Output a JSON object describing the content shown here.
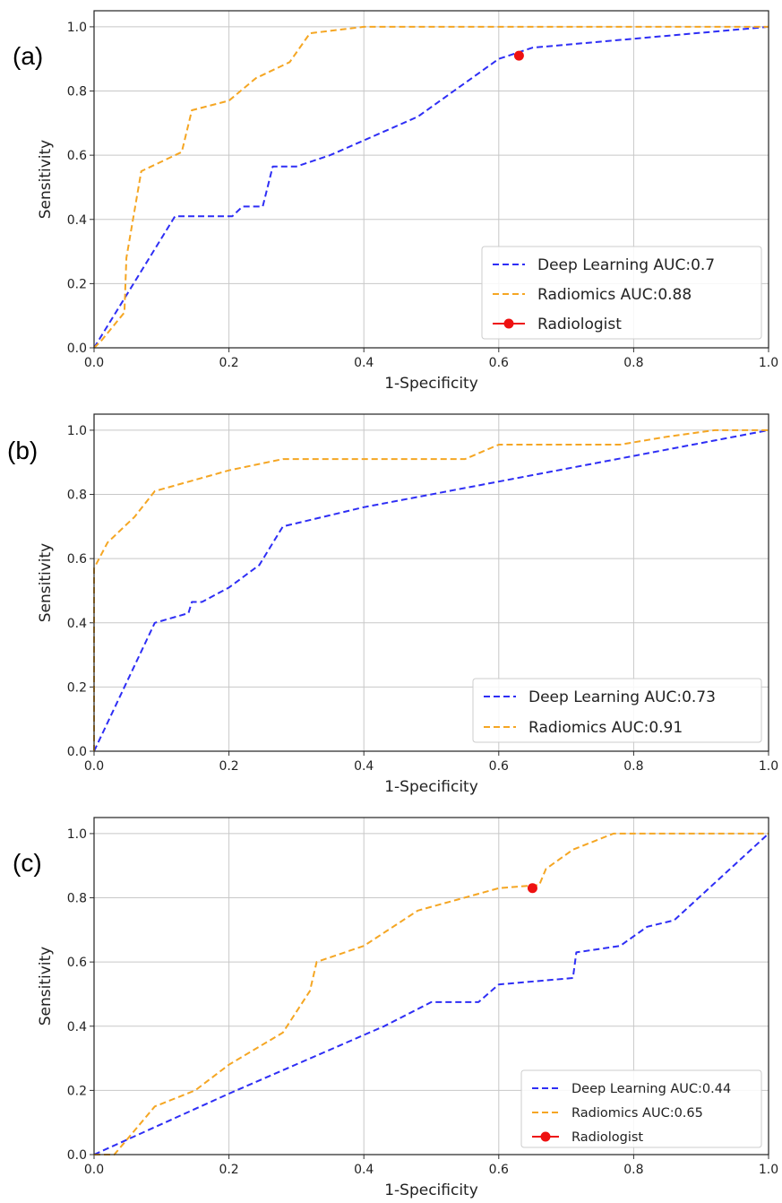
{
  "chart_data": [
    {
      "type": "line",
      "panel_label": "(a)",
      "xlabel": "1-Specificity",
      "ylabel": "Sensitivity",
      "xlim": [
        0,
        1
      ],
      "ylim": [
        0,
        1.05
      ],
      "xticks": [
        0.0,
        0.2,
        0.4,
        0.6,
        0.8,
        1.0
      ],
      "yticks": [
        0.0,
        0.2,
        0.4,
        0.6,
        0.8,
        1.0
      ],
      "xtick_labels": [
        "0.0",
        "0.2",
        "0.4",
        "0.6",
        "0.8",
        "1.0"
      ],
      "ytick_labels": [
        "0.0",
        "0.2",
        "0.4",
        "0.6",
        "0.8",
        "1.0"
      ],
      "grid": true,
      "legend": "lower-right",
      "series": [
        {
          "name": "Deep Learning AUC:0.7",
          "color": "#2e2ef5",
          "style": "dashed",
          "x": [
            0,
            0.12,
            0.205,
            0.22,
            0.25,
            0.265,
            0.3,
            0.35,
            0.48,
            0.6,
            0.65,
            1.0
          ],
          "y": [
            0,
            0.41,
            0.41,
            0.44,
            0.44,
            0.565,
            0.565,
            0.6,
            0.72,
            0.9,
            0.935,
            1.0
          ]
        },
        {
          "name": "Radiomics AUC:0.88",
          "color": "#f5a623",
          "style": "dashed",
          "x": [
            0,
            0.01,
            0.045,
            0.048,
            0.07,
            0.13,
            0.145,
            0.2,
            0.24,
            0.29,
            0.32,
            0.4,
            1.0
          ],
          "y": [
            0,
            0.02,
            0.11,
            0.28,
            0.55,
            0.61,
            0.74,
            0.77,
            0.84,
            0.89,
            0.98,
            1.0,
            1.0
          ]
        },
        {
          "name": "Radiologist",
          "color": "#ee1111",
          "style": "point",
          "x": [
            0.63
          ],
          "y": [
            0.91
          ]
        }
      ]
    },
    {
      "type": "line",
      "panel_label": "(b)",
      "xlabel": "1-Specificity",
      "ylabel": "Sensitivity",
      "xlim": [
        0,
        1
      ],
      "ylim": [
        0,
        1.05
      ],
      "xticks": [
        0.0,
        0.2,
        0.4,
        0.6,
        0.8,
        1.0
      ],
      "yticks": [
        0.0,
        0.2,
        0.4,
        0.6,
        0.8,
        1.0
      ],
      "xtick_labels": [
        "0.0",
        "0.2",
        "0.4",
        "0.6",
        "0.8",
        "1.0"
      ],
      "ytick_labels": [
        "0.0",
        "0.2",
        "0.4",
        "0.6",
        "0.8",
        "1.0"
      ],
      "grid": true,
      "legend": "lower-right",
      "series": [
        {
          "name": "Deep Learning AUC:0.73",
          "color": "#2e2ef5",
          "style": "dashed",
          "x": [
            0,
            0.09,
            0.14,
            0.145,
            0.16,
            0.2,
            0.245,
            0.28,
            0.4,
            0.6,
            0.8,
            1.0
          ],
          "y": [
            0,
            0.4,
            0.43,
            0.465,
            0.465,
            0.51,
            0.58,
            0.7,
            0.76,
            0.84,
            0.92,
            1.0
          ]
        },
        {
          "name": "Radiomics AUC:0.91",
          "color": "#f5a623",
          "style": "dashed",
          "x": [
            0,
            0.0,
            0.02,
            0.06,
            0.09,
            0.2,
            0.28,
            0.55,
            0.6,
            0.78,
            0.85,
            0.92,
            1.0
          ],
          "y": [
            0,
            0.57,
            0.65,
            0.73,
            0.81,
            0.875,
            0.91,
            0.91,
            0.955,
            0.955,
            0.98,
            1.0,
            1.0
          ]
        }
      ]
    },
    {
      "type": "line",
      "panel_label": "(c)",
      "xlabel": "1-Specificity",
      "ylabel": "Sensitivity",
      "xlim": [
        0,
        1
      ],
      "ylim": [
        0,
        1.05
      ],
      "xticks": [
        0.0,
        0.2,
        0.4,
        0.6,
        0.8,
        1.0
      ],
      "yticks": [
        0.0,
        0.2,
        0.4,
        0.6,
        0.8,
        1.0
      ],
      "xtick_labels": [
        "0.0",
        "0.2",
        "0.4",
        "0.6",
        "0.8",
        "1.0"
      ],
      "ytick_labels": [
        "0.0",
        "0.2",
        "0.4",
        "0.6",
        "0.8",
        "1.0"
      ],
      "grid": true,
      "legend": "lower-right",
      "series": [
        {
          "name": "Deep Learning AUC:0.44",
          "color": "#2e2ef5",
          "style": "dashed",
          "x": [
            0,
            0.2,
            0.43,
            0.5,
            0.57,
            0.6,
            0.71,
            0.715,
            0.78,
            0.82,
            0.86,
            1.0
          ],
          "y": [
            0,
            0.19,
            0.4,
            0.475,
            0.475,
            0.53,
            0.55,
            0.63,
            0.65,
            0.71,
            0.73,
            1.0
          ]
        },
        {
          "name": "Radiomics AUC:0.65",
          "color": "#f5a623",
          "style": "dashed",
          "x": [
            0,
            0.03,
            0.09,
            0.15,
            0.2,
            0.28,
            0.32,
            0.33,
            0.4,
            0.48,
            0.6,
            0.66,
            0.67,
            0.71,
            0.77,
            1.0
          ],
          "y": [
            0,
            0.0,
            0.15,
            0.2,
            0.28,
            0.38,
            0.51,
            0.6,
            0.65,
            0.76,
            0.83,
            0.84,
            0.89,
            0.95,
            1.0,
            1.0
          ]
        },
        {
          "name": "Radiologist",
          "color": "#ee1111",
          "style": "point",
          "x": [
            0.65
          ],
          "y": [
            0.83
          ]
        }
      ]
    }
  ]
}
